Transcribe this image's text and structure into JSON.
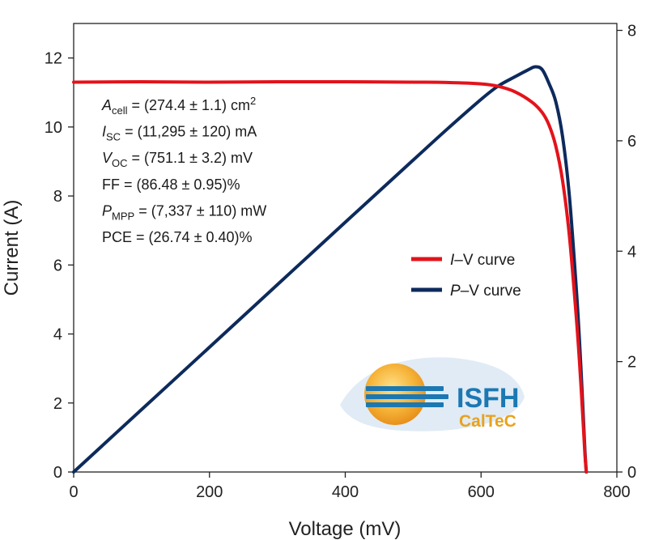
{
  "chart_data": {
    "type": "line",
    "xlabel": "Voltage (mV)",
    "ylabel": "Current (A)",
    "xlim": [
      0,
      800
    ],
    "ylim_left": [
      0,
      13
    ],
    "ylim_right": [
      0,
      8.125
    ],
    "x_ticks": [
      "0",
      "200",
      "400",
      "600",
      "800"
    ],
    "y_left_ticks": [
      "0",
      "2",
      "4",
      "6",
      "8",
      "10",
      "12"
    ],
    "y_right_ticks": [
      "0",
      "2",
      "4",
      "6",
      "8"
    ],
    "grid": false,
    "legend_position": "center-right",
    "series": [
      {
        "name": "I–V curve",
        "name_italic": "I",
        "name_rest": "–V curve",
        "axis": "left",
        "color": "#e3131b",
        "points": [
          [
            0,
            11.3
          ],
          [
            100,
            11.31
          ],
          [
            200,
            11.3
          ],
          [
            300,
            11.31
          ],
          [
            400,
            11.31
          ],
          [
            500,
            11.3
          ],
          [
            550,
            11.29
          ],
          [
            600,
            11.25
          ],
          [
            625,
            11.18
          ],
          [
            650,
            11.02
          ],
          [
            675,
            10.72
          ],
          [
            690,
            10.42
          ],
          [
            700,
            10.06
          ],
          [
            710,
            9.45
          ],
          [
            720,
            8.45
          ],
          [
            730,
            6.86
          ],
          [
            740,
            4.55
          ],
          [
            745,
            3.18
          ],
          [
            750,
            1.55
          ],
          [
            753,
            0.5
          ],
          [
            755,
            0.0
          ]
        ]
      },
      {
        "name": "P–V curve",
        "name_italic": "P",
        "name_rest": "–V curve",
        "axis": "right",
        "color": "#0d2a5c",
        "points": [
          [
            0,
            0.0
          ],
          [
            100,
            1.131
          ],
          [
            200,
            2.26
          ],
          [
            300,
            3.393
          ],
          [
            400,
            4.524
          ],
          [
            500,
            5.65
          ],
          [
            550,
            6.21
          ],
          [
            600,
            6.75
          ],
          [
            625,
            6.99
          ],
          [
            650,
            7.16
          ],
          [
            670,
            7.29
          ],
          [
            680,
            7.34
          ],
          [
            690,
            7.29
          ],
          [
            700,
            7.04
          ],
          [
            710,
            6.71
          ],
          [
            720,
            6.08
          ],
          [
            730,
            5.01
          ],
          [
            740,
            3.37
          ],
          [
            745,
            2.37
          ],
          [
            750,
            1.16
          ],
          [
            753,
            0.38
          ],
          [
            755,
            0.0
          ]
        ]
      }
    ],
    "annotations": [
      {
        "key": "A",
        "sub": "cell",
        "value": " = (274.4 ± 1.1) cm",
        "sup": "2"
      },
      {
        "key": "I",
        "sub": "SC",
        "value": " = (11,295 ± 120) mA",
        "sup": ""
      },
      {
        "key": "V",
        "sub": "OC",
        "value": " = (751.1 ± 3.2) mV",
        "sup": ""
      },
      {
        "key": "",
        "sub": "",
        "value": "FF = (86.48 ± 0.95)%",
        "sup": ""
      },
      {
        "key": "P",
        "sub": "MPP",
        "value": " = (7,337 ± 110) mW",
        "sup": ""
      },
      {
        "key": "",
        "sub": "",
        "value": "PCE = (26.74 ± 0.40)%",
        "sup": ""
      }
    ]
  },
  "logo": {
    "name": "ISFH",
    "subtitle": "CalTeC",
    "sun_color": "#f2a21b",
    "name_color": "#1b78b3",
    "subtitle_color": "#e8a21d"
  }
}
